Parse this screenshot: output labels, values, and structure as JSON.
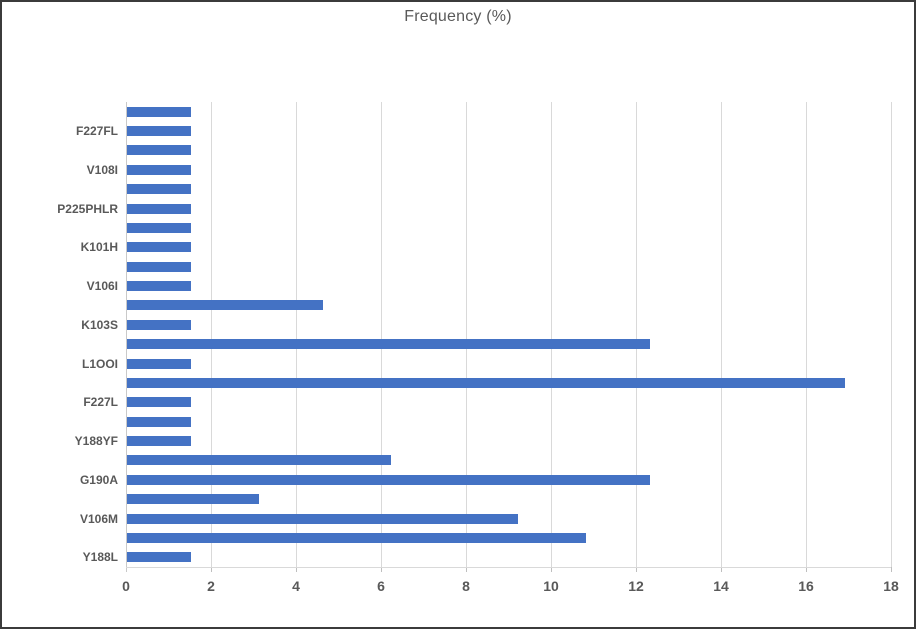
{
  "chart_data": {
    "type": "bar",
    "orientation": "horizontal",
    "title": "Frequency (%)",
    "xlabel": "",
    "ylabel": "",
    "xlim": [
      0,
      18
    ],
    "xticks": [
      0,
      2,
      4,
      6,
      8,
      10,
      12,
      14,
      16,
      18
    ],
    "grid": true,
    "legend": false,
    "bar_color": "#4472C4",
    "gridline_color": "#D9D9D9",
    "axis_text_color": "#595959",
    "bars": [
      {
        "label": "",
        "value": 1.5
      },
      {
        "label": "F227FL",
        "value": 1.5
      },
      {
        "label": "",
        "value": 1.5
      },
      {
        "label": "V108I",
        "value": 1.5
      },
      {
        "label": "",
        "value": 1.5
      },
      {
        "label": "P225PHLR",
        "value": 1.5
      },
      {
        "label": "",
        "value": 1.5
      },
      {
        "label": "K101H",
        "value": 1.5
      },
      {
        "label": "",
        "value": 1.5
      },
      {
        "label": "V106I",
        "value": 1.5
      },
      {
        "label": "",
        "value": 4.6
      },
      {
        "label": "K103S",
        "value": 1.5
      },
      {
        "label": "",
        "value": 12.3
      },
      {
        "label": "L1OOI",
        "value": 1.5
      },
      {
        "label": "",
        "value": 16.9
      },
      {
        "label": "F227L",
        "value": 1.5
      },
      {
        "label": "",
        "value": 1.5
      },
      {
        "label": "Y188YF",
        "value": 1.5
      },
      {
        "label": "",
        "value": 6.2
      },
      {
        "label": "G190A",
        "value": 12.3
      },
      {
        "label": "",
        "value": 3.1
      },
      {
        "label": "V106M",
        "value": 9.2
      },
      {
        "label": "",
        "value": 10.8
      },
      {
        "label": "Y188L",
        "value": 1.5
      }
    ]
  }
}
